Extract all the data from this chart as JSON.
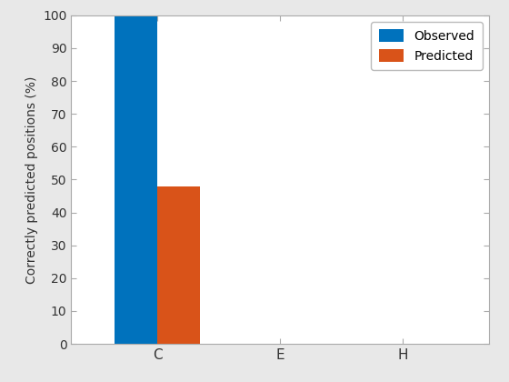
{
  "categories": [
    "C",
    "E",
    "H"
  ],
  "observed": [
    100,
    0,
    0
  ],
  "predicted": [
    48,
    0,
    0
  ],
  "observed_color": "#0072BD",
  "predicted_color": "#D95319",
  "ylabel": "Correctly predicted positions (%)",
  "ylim": [
    0,
    100
  ],
  "yticks": [
    0,
    10,
    20,
    30,
    40,
    50,
    60,
    70,
    80,
    90,
    100
  ],
  "legend_labels": [
    "Observed",
    "Predicted"
  ],
  "bar_width": 0.35,
  "figure_facecolor": "#e8e8e8",
  "axes_facecolor": "#ffffff"
}
